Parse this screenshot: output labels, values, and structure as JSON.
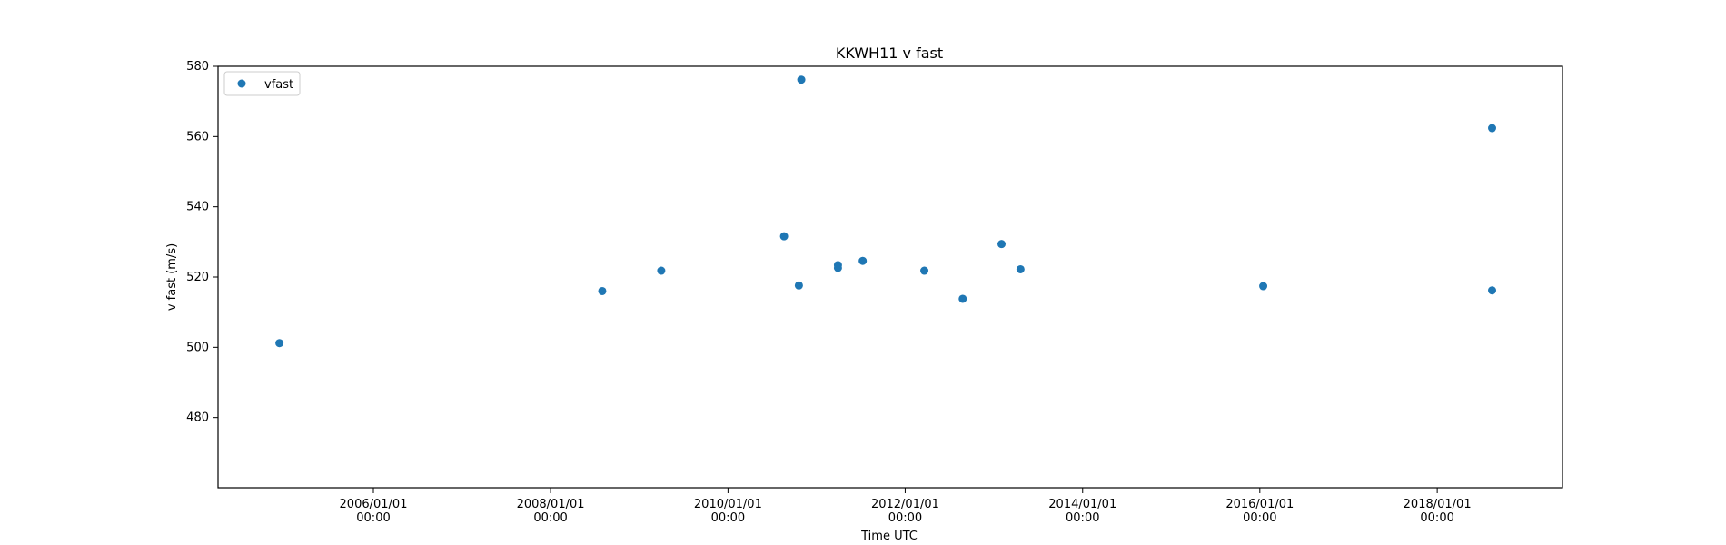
{
  "chart_data": {
    "type": "scatter",
    "title": "KKWH11 v fast",
    "xlabel": "Time UTC",
    "ylabel": "v fast (m/s)",
    "xlim": [
      "2004-04-01",
      "2019-06-01"
    ],
    "ylim": [
      460,
      580
    ],
    "x_ticks": [
      {
        "date": "2006-01-01",
        "line1": "2006/01/01",
        "line2": "00:00"
      },
      {
        "date": "2008-01-01",
        "line1": "2008/01/01",
        "line2": "00:00"
      },
      {
        "date": "2010-01-01",
        "line1": "2010/01/01",
        "line2": "00:00"
      },
      {
        "date": "2012-01-01",
        "line1": "2012/01/01",
        "line2": "00:00"
      },
      {
        "date": "2014-01-01",
        "line1": "2014/01/01",
        "line2": "00:00"
      },
      {
        "date": "2016-01-01",
        "line1": "2016/01/01",
        "line2": "00:00"
      },
      {
        "date": "2018-01-01",
        "line1": "2018/01/01",
        "line2": "00:00"
      }
    ],
    "y_ticks": [
      {
        "value": 480,
        "label": "480"
      },
      {
        "value": 500,
        "label": "500"
      },
      {
        "value": 520,
        "label": "520"
      },
      {
        "value": 540,
        "label": "540"
      },
      {
        "value": 560,
        "label": "560"
      },
      {
        "value": 580,
        "label": "580"
      }
    ],
    "grid": false,
    "legend_position": "top-left",
    "series": [
      {
        "name": "vfast",
        "color": "#1f77b4",
        "marker": "circle",
        "points": [
          {
            "x": "2004-12-10",
            "y": 501.2
          },
          {
            "x": "2008-08-01",
            "y": 516.0
          },
          {
            "x": "2009-04-01",
            "y": 521.8
          },
          {
            "x": "2010-08-20",
            "y": 531.6
          },
          {
            "x": "2010-10-20",
            "y": 517.6
          },
          {
            "x": "2010-10-30",
            "y": 576.2
          },
          {
            "x": "2011-03-30",
            "y": 523.4
          },
          {
            "x": "2011-03-30",
            "y": 522.6
          },
          {
            "x": "2011-07-10",
            "y": 524.6
          },
          {
            "x": "2012-03-20",
            "y": 521.8
          },
          {
            "x": "2012-08-25",
            "y": 513.8
          },
          {
            "x": "2013-02-01",
            "y": 529.4
          },
          {
            "x": "2013-04-20",
            "y": 522.2
          },
          {
            "x": "2016-01-15",
            "y": 517.4
          },
          {
            "x": "2018-08-15",
            "y": 562.4
          },
          {
            "x": "2018-08-15",
            "y": 516.2
          }
        ]
      }
    ]
  }
}
